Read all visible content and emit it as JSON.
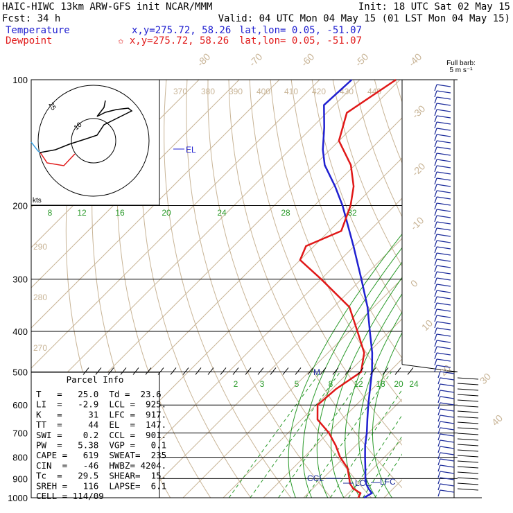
{
  "header": {
    "line1_left": "HAIC-HIWC 13km ARW-GFS init   NCAR/MMM",
    "line1_right": "Init: 18 UTC Sat 02 May 15",
    "line2_left": "Fcst:   34 h",
    "line2_right": "Valid: 04 UTC Mon 04 May 15 (01 LST Mon 04 May 15)",
    "temp_label": "Temperature",
    "temp_xy": "x,y=275.72, 58.26",
    "temp_latlon": "lat,lon=  0.05, -51.07",
    "dew_label": "Dewpoint",
    "dew_xy": "✩ x,y=275.72, 58.26",
    "dew_latlon": "lat,lon=  0.05, -51.07",
    "temp_color": "#2020d0",
    "dew_color": "#e01818"
  },
  "barb_legend": {
    "line1": "Full barb:",
    "line2": "5 m s⁻¹"
  },
  "parcel_info": {
    "title": "Parcel Info",
    "rows": [
      "T   =   25.0  Td =  23.6",
      "LI  =   -2.9  LCL =  925.",
      "K   =     31  LFC =  917.",
      "TT  =     44  EL  =  147.",
      "SWI =    0.2  CCL =  901.",
      "PW  =   5.38  VGP =   0.1",
      "CAPE =   619  SWEAT=  235",
      "CIN  =   -46  HWBZ= 4204.",
      "Tc  =   29.5  SHEAR=  15.",
      "SREH =   116  LAPSE=  6.1",
      "CELL = 114/09"
    ]
  },
  "hodograph": {
    "units": "kts",
    "ring_labels": [
      "10",
      "25"
    ]
  },
  "markers": {
    "el": "EL",
    "lcl": "LCL",
    "lfc": "LFC",
    "ccl": "CCL",
    "m": "M"
  },
  "chart_data": {
    "type": "line",
    "title": "",
    "y_axis": {
      "label": "",
      "scale": "log",
      "ticks": [
        100,
        200,
        300,
        400,
        500,
        600,
        700,
        800,
        900,
        1000
      ]
    },
    "isotherm_labels": [
      "-80",
      "-70",
      "-60",
      "-50",
      "-40",
      "-30",
      "-20",
      "-10",
      "0",
      "10",
      "20",
      "30",
      "40"
    ],
    "theta_e_labels": [
      "370",
      "380",
      "390",
      "400",
      "410",
      "420",
      "430",
      "440"
    ],
    "theta_labels": [
      "290",
      "280",
      "270"
    ],
    "mixing_ratio_labels_upper": [
      "8",
      "12",
      "16",
      "20",
      "24",
      "28",
      "32"
    ],
    "mixing_ratio_labels_lower": [
      "2",
      "3",
      "5",
      "8",
      "12",
      "16",
      "20",
      "24"
    ],
    "series": [
      {
        "name": "Temperature",
        "pressure": [
          1000,
          975,
          950,
          925,
          900,
          850,
          800,
          750,
          700,
          650,
          600,
          550,
          500,
          450,
          400,
          350,
          300,
          250,
          200,
          180,
          160,
          147,
          130,
          115,
          100
        ],
        "values": [
          25.0,
          25.8,
          23.8,
          22.0,
          20.6,
          18.0,
          15.2,
          12.3,
          9.6,
          6.4,
          3.0,
          -0.5,
          -4.3,
          -9.0,
          -14.9,
          -21.5,
          -30.0,
          -40.2,
          -53.0,
          -59.6,
          -67.5,
          -71.8,
          -77.0,
          -82.6,
          -82.0
        ]
      },
      {
        "name": "Dewpoint",
        "pressure": [
          1000,
          975,
          950,
          925,
          900,
          850,
          800,
          750,
          700,
          650,
          600,
          550,
          500,
          450,
          400,
          350,
          300,
          270,
          250,
          230,
          200,
          180,
          160,
          140,
          120,
          100
        ],
        "values": [
          23.6,
          23.0,
          20.0,
          18.0,
          16.6,
          13.6,
          9.0,
          5.0,
          0.2,
          -6.0,
          -9.6,
          -9.0,
          -7.0,
          -11.0,
          -18.0,
          -26.0,
          -40.0,
          -50.0,
          -52.0,
          -47.0,
          -51.0,
          -55.0,
          -61.0,
          -70.0,
          -75.0,
          -71.0
        ]
      }
    ],
    "wind_barbs_range_hPa": [
      100,
      1000
    ]
  }
}
